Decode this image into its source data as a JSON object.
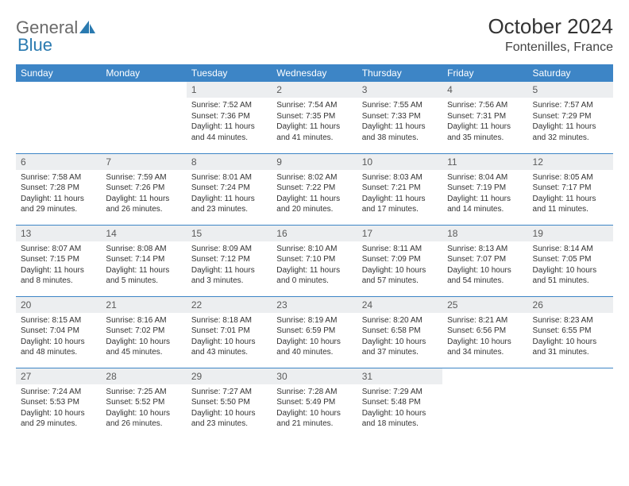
{
  "brand": {
    "part1": "General",
    "part2": "Blue",
    "color_text": "#6a6a6a",
    "color_accent": "#2a7ab0"
  },
  "title": "October 2024",
  "location": "Fontenilles, France",
  "header_bg": "#3d85c6",
  "header_text_color": "#ffffff",
  "daynum_bg": "#eceef0",
  "border_color": "#3d85c6",
  "body_font_size": 10,
  "days_of_week": [
    "Sunday",
    "Monday",
    "Tuesday",
    "Wednesday",
    "Thursday",
    "Friday",
    "Saturday"
  ],
  "weeks": [
    [
      null,
      null,
      {
        "n": "1",
        "sr": "7:52 AM",
        "ss": "7:36 PM",
        "dl": "11 hours and 44 minutes."
      },
      {
        "n": "2",
        "sr": "7:54 AM",
        "ss": "7:35 PM",
        "dl": "11 hours and 41 minutes."
      },
      {
        "n": "3",
        "sr": "7:55 AM",
        "ss": "7:33 PM",
        "dl": "11 hours and 38 minutes."
      },
      {
        "n": "4",
        "sr": "7:56 AM",
        "ss": "7:31 PM",
        "dl": "11 hours and 35 minutes."
      },
      {
        "n": "5",
        "sr": "7:57 AM",
        "ss": "7:29 PM",
        "dl": "11 hours and 32 minutes."
      }
    ],
    [
      {
        "n": "6",
        "sr": "7:58 AM",
        "ss": "7:28 PM",
        "dl": "11 hours and 29 minutes."
      },
      {
        "n": "7",
        "sr": "7:59 AM",
        "ss": "7:26 PM",
        "dl": "11 hours and 26 minutes."
      },
      {
        "n": "8",
        "sr": "8:01 AM",
        "ss": "7:24 PM",
        "dl": "11 hours and 23 minutes."
      },
      {
        "n": "9",
        "sr": "8:02 AM",
        "ss": "7:22 PM",
        "dl": "11 hours and 20 minutes."
      },
      {
        "n": "10",
        "sr": "8:03 AM",
        "ss": "7:21 PM",
        "dl": "11 hours and 17 minutes."
      },
      {
        "n": "11",
        "sr": "8:04 AM",
        "ss": "7:19 PM",
        "dl": "11 hours and 14 minutes."
      },
      {
        "n": "12",
        "sr": "8:05 AM",
        "ss": "7:17 PM",
        "dl": "11 hours and 11 minutes."
      }
    ],
    [
      {
        "n": "13",
        "sr": "8:07 AM",
        "ss": "7:15 PM",
        "dl": "11 hours and 8 minutes."
      },
      {
        "n": "14",
        "sr": "8:08 AM",
        "ss": "7:14 PM",
        "dl": "11 hours and 5 minutes."
      },
      {
        "n": "15",
        "sr": "8:09 AM",
        "ss": "7:12 PM",
        "dl": "11 hours and 3 minutes."
      },
      {
        "n": "16",
        "sr": "8:10 AM",
        "ss": "7:10 PM",
        "dl": "11 hours and 0 minutes."
      },
      {
        "n": "17",
        "sr": "8:11 AM",
        "ss": "7:09 PM",
        "dl": "10 hours and 57 minutes."
      },
      {
        "n": "18",
        "sr": "8:13 AM",
        "ss": "7:07 PM",
        "dl": "10 hours and 54 minutes."
      },
      {
        "n": "19",
        "sr": "8:14 AM",
        "ss": "7:05 PM",
        "dl": "10 hours and 51 minutes."
      }
    ],
    [
      {
        "n": "20",
        "sr": "8:15 AM",
        "ss": "7:04 PM",
        "dl": "10 hours and 48 minutes."
      },
      {
        "n": "21",
        "sr": "8:16 AM",
        "ss": "7:02 PM",
        "dl": "10 hours and 45 minutes."
      },
      {
        "n": "22",
        "sr": "8:18 AM",
        "ss": "7:01 PM",
        "dl": "10 hours and 43 minutes."
      },
      {
        "n": "23",
        "sr": "8:19 AM",
        "ss": "6:59 PM",
        "dl": "10 hours and 40 minutes."
      },
      {
        "n": "24",
        "sr": "8:20 AM",
        "ss": "6:58 PM",
        "dl": "10 hours and 37 minutes."
      },
      {
        "n": "25",
        "sr": "8:21 AM",
        "ss": "6:56 PM",
        "dl": "10 hours and 34 minutes."
      },
      {
        "n": "26",
        "sr": "8:23 AM",
        "ss": "6:55 PM",
        "dl": "10 hours and 31 minutes."
      }
    ],
    [
      {
        "n": "27",
        "sr": "7:24 AM",
        "ss": "5:53 PM",
        "dl": "10 hours and 29 minutes."
      },
      {
        "n": "28",
        "sr": "7:25 AM",
        "ss": "5:52 PM",
        "dl": "10 hours and 26 minutes."
      },
      {
        "n": "29",
        "sr": "7:27 AM",
        "ss": "5:50 PM",
        "dl": "10 hours and 23 minutes."
      },
      {
        "n": "30",
        "sr": "7:28 AM",
        "ss": "5:49 PM",
        "dl": "10 hours and 21 minutes."
      },
      {
        "n": "31",
        "sr": "7:29 AM",
        "ss": "5:48 PM",
        "dl": "10 hours and 18 minutes."
      },
      null,
      null
    ]
  ]
}
